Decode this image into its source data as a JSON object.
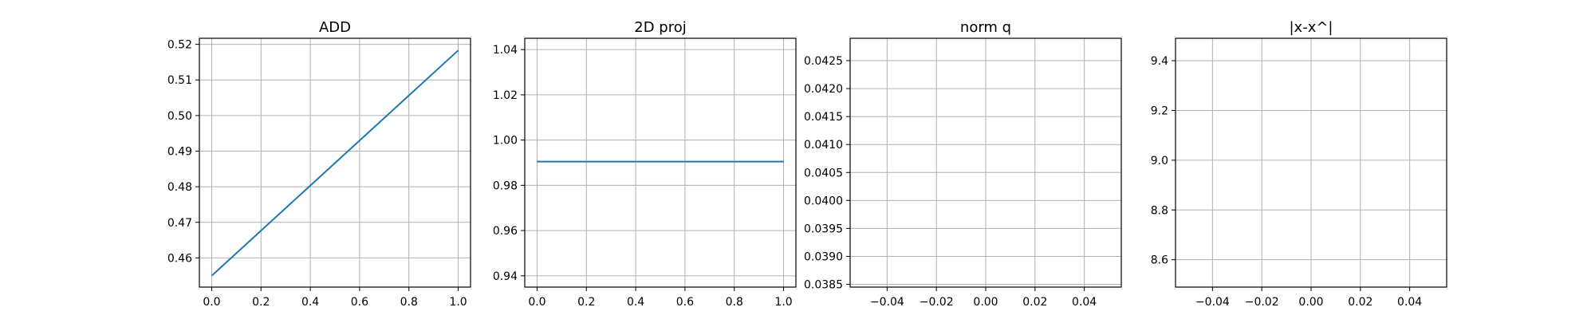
{
  "chart_data": [
    {
      "type": "line",
      "title": "ADD",
      "xlim": [
        -0.05,
        1.05
      ],
      "ylim": [
        0.4518,
        0.5217
      ],
      "xticks": [
        0.0,
        0.2,
        0.4,
        0.6,
        0.8,
        1.0
      ],
      "yticks": [
        0.46,
        0.47,
        0.48,
        0.49,
        0.5,
        0.51,
        0.52
      ],
      "grid": true,
      "series": [
        {
          "x": [
            0.0,
            1.0
          ],
          "y": [
            0.455,
            0.5183
          ],
          "color": "#1f77b4"
        }
      ]
    },
    {
      "type": "line",
      "title": "2D proj",
      "xlim": [
        -0.05,
        1.05
      ],
      "ylim": [
        0.935,
        1.045
      ],
      "xticks": [
        0.0,
        0.2,
        0.4,
        0.6,
        0.8,
        1.0
      ],
      "yticks": [
        0.94,
        0.96,
        0.98,
        1.0,
        1.02,
        1.04
      ],
      "grid": true,
      "series": [
        {
          "x": [
            0.0,
            1.0
          ],
          "y": [
            0.9905,
            0.9905
          ],
          "color": "#1f77b4"
        }
      ]
    },
    {
      "type": "line",
      "title": "norm q",
      "xlim": [
        -0.055,
        0.055
      ],
      "ylim": [
        0.03845,
        0.0429
      ],
      "xticks": [
        -0.04,
        -0.02,
        0.0,
        0.02,
        0.04
      ],
      "yticks": [
        0.0385,
        0.039,
        0.0395,
        0.04,
        0.0405,
        0.041,
        0.0415,
        0.042,
        0.0425
      ],
      "grid": true,
      "series": []
    },
    {
      "type": "line",
      "title": "|x-x^|",
      "xlim": [
        -0.055,
        0.055
      ],
      "ylim": [
        8.49,
        9.49
      ],
      "xticks": [
        -0.04,
        -0.02,
        0.0,
        0.02,
        0.04
      ],
      "yticks": [
        8.6,
        8.8,
        9.0,
        9.2,
        9.4
      ],
      "grid": true,
      "series": []
    }
  ]
}
